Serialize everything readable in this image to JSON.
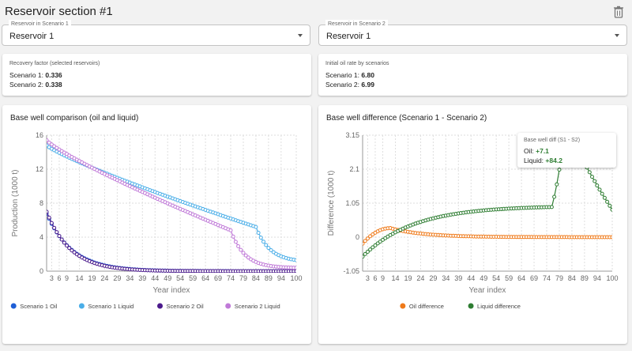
{
  "page": {
    "title": "Reservoir section #1"
  },
  "selects": [
    {
      "legend": "Reservoir in Scenario 1",
      "value": "Reservoir 1"
    },
    {
      "legend": "Reservoir in Scenario 2",
      "value": "Reservoir 1"
    }
  ],
  "recovery": {
    "title": "Recovery factor (selected reservoirs)",
    "lines": [
      {
        "label": "Scenario 1: ",
        "value": "0.336"
      },
      {
        "label": "Scenario 2: ",
        "value": "0.338"
      }
    ]
  },
  "oil_rate": {
    "title": "Initial oil rate by scenarios",
    "lines": [
      {
        "label": "Scenario 1: ",
        "value": "6.80"
      },
      {
        "label": "Scenario 2: ",
        "value": "6.99"
      }
    ]
  },
  "tooltip": {
    "title": "Base well diff (S1 - S2)",
    "oil_label": "Oil: ",
    "oil_value": "+7.1",
    "liquid_label": "Liquid: ",
    "liquid_value": "+84.2"
  },
  "chart_data": [
    {
      "type": "line",
      "title": "Base well comparison (oil and liquid)",
      "xlabel": "Year index",
      "ylabel": "Production (1000 t)",
      "xlim": [
        1,
        100
      ],
      "ylim": [
        0,
        16
      ],
      "yticks": [
        0,
        4,
        8,
        12,
        16
      ],
      "xticks": [
        3,
        6,
        9,
        14,
        19,
        24,
        29,
        34,
        39,
        44,
        49,
        54,
        59,
        64,
        69,
        74,
        79,
        84,
        89,
        94,
        100
      ],
      "grid": true,
      "legend_position": "bottom",
      "series": [
        {
          "name": "Scenario 1 Oil",
          "color": "#1f5fd6",
          "model": "decay",
          "y0": 6.8,
          "rate": 0.1
        },
        {
          "name": "Scenario 1 Liquid",
          "color": "#4aaee8",
          "model": "liquid",
          "y0": 14.8,
          "y_break": 5.2,
          "x_break": 84,
          "y_end": 1.3
        },
        {
          "name": "Scenario 2 Oil",
          "color": "#4b1a8c",
          "model": "decay",
          "y0": 6.99,
          "rate": 0.105
        },
        {
          "name": "Scenario 2 Liquid",
          "color": "#c07ad8",
          "model": "liquid",
          "y0": 15.4,
          "y_break": 4.8,
          "x_break": 74,
          "y_end": 0.4
        }
      ]
    },
    {
      "type": "line",
      "title": "Base well difference (Scenario 1 - Scenario 2)",
      "xlabel": "Year index",
      "ylabel": "Difference (1000 t)",
      "xlim": [
        1,
        100
      ],
      "ylim": [
        -1.05,
        3.15
      ],
      "yticks": [
        -1.05,
        0,
        1.05,
        2.1,
        3.15
      ],
      "xticks": [
        3,
        6,
        9,
        14,
        19,
        24,
        29,
        34,
        39,
        44,
        49,
        54,
        59,
        64,
        69,
        74,
        79,
        84,
        89,
        94,
        100
      ],
      "grid": true,
      "legend_position": "bottom",
      "series": [
        {
          "name": "Oil difference",
          "color": "#ef7a1a",
          "model": "oil_diff"
        },
        {
          "name": "Liquid difference",
          "color": "#2e7d32",
          "model": "liquid_diff"
        }
      ]
    }
  ]
}
